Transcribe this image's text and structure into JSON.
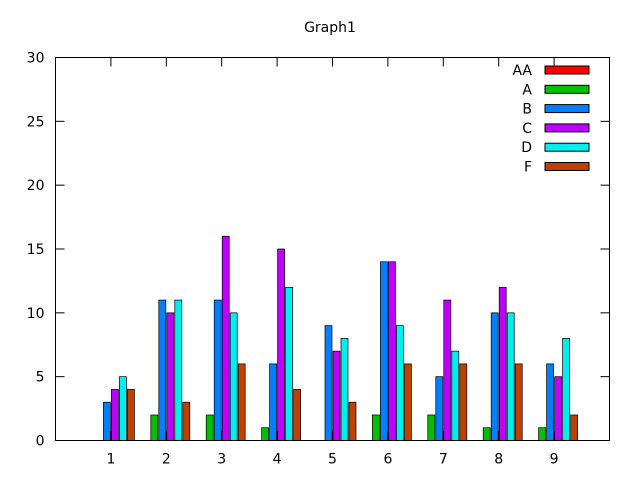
{
  "chart_data": {
    "type": "bar",
    "title": "Graph1",
    "categories": [
      "1",
      "2",
      "3",
      "4",
      "5",
      "6",
      "7",
      "8",
      "9"
    ],
    "ylim": [
      0,
      30
    ],
    "yticks": [
      "0",
      "5",
      "10",
      "15",
      "20",
      "25",
      "30"
    ],
    "grid": false,
    "legend_position": "top-right",
    "series": [
      {
        "name": "AA",
        "color": "#ff0000",
        "values": [
          0,
          0,
          0,
          0,
          0,
          0,
          0,
          0,
          0
        ]
      },
      {
        "name": "A",
        "color": "#00c000",
        "values": [
          0,
          2,
          2,
          1,
          0,
          2,
          2,
          1,
          1
        ]
      },
      {
        "name": "B",
        "color": "#0080ff",
        "values": [
          3,
          11,
          11,
          6,
          9,
          14,
          5,
          10,
          6
        ]
      },
      {
        "name": "C",
        "color": "#c000ff",
        "values": [
          4,
          10,
          16,
          15,
          7,
          14,
          11,
          12,
          5
        ]
      },
      {
        "name": "D",
        "color": "#00eeee",
        "values": [
          5,
          11,
          10,
          12,
          8,
          9,
          7,
          10,
          8
        ]
      },
      {
        "name": "F",
        "color": "#c04000",
        "values": [
          4,
          3,
          6,
          4,
          3,
          6,
          6,
          6,
          2
        ]
      }
    ]
  }
}
